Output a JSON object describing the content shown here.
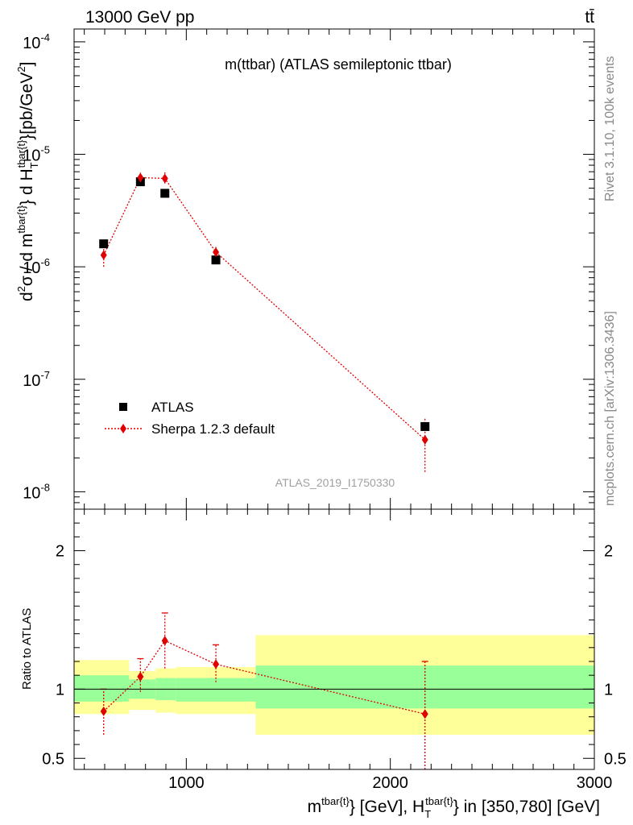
{
  "header": {
    "energy_label": "13000 GeV pp",
    "process_label": "tt̄"
  },
  "side_labels": {
    "rivet": "Rivet 3.1.10,  100k events",
    "mcplots": "mcplots.cern.ch [arXiv:1306.3436]"
  },
  "chart_data": [
    {
      "type": "scatter",
      "title": "m(ttbar) (ATLAS semileptonic ttbar)",
      "watermark": "ATLAS_2019_I1750330",
      "ylabel": "d²σ / d m^tbar{t} d H_T^tbar{t} [pb/GeV²]",
      "yscale": "log",
      "xlim": [
        450,
        3000
      ],
      "ylim": [
        7e-09,
        0.00013
      ],
      "y_tick_labels": [
        "10^-8",
        "10^-7",
        "10^-6",
        "10^-5",
        "10^-4"
      ],
      "legend": {
        "placement": "bottom-left"
      },
      "series": [
        {
          "name": "ATLAS",
          "x": [
            595,
            775,
            895,
            1145,
            2170
          ],
          "y": [
            1.6e-06,
            5.7e-06,
            4.5e-06,
            1.15e-06,
            3.8e-08
          ]
        },
        {
          "name": "Sherpa 1.2.3 default",
          "x": [
            595,
            775,
            895,
            1145,
            2170
          ],
          "y": [
            1.27e-06,
            6.2e-06,
            6.1e-06,
            1.35e-06,
            2.9e-08
          ],
          "err_low": [
            1e-06,
            5.6e-06,
            5.5e-06,
            1.2e-06,
            1.5e-08
          ],
          "err_high": [
            1.55e-06,
            6.9e-06,
            6.9e-06,
            1.5e-06,
            4.5e-08
          ]
        }
      ]
    },
    {
      "type": "scatter",
      "ylabel": "Ratio to ATLAS",
      "xlabel": "m^tbar{t} [GeV], H_T^tbar{t} in [350,780] [GeV]",
      "xlim": [
        450,
        3000
      ],
      "ylim": [
        0.42,
        2.3
      ],
      "x_tick_labels": [
        "1000",
        "2000",
        "3000"
      ],
      "y_tick_labels": [
        "0.5",
        "1",
        "2"
      ],
      "bins": [
        {
          "x_range": [
            450,
            720
          ],
          "green": [
            0.91,
            1.1
          ],
          "yellow": [
            0.82,
            1.21
          ]
        },
        {
          "x_range": [
            720,
            850
          ],
          "green": [
            0.93,
            1.07
          ],
          "yellow": [
            0.85,
            1.13
          ]
        },
        {
          "x_range": [
            850,
            950
          ],
          "green": [
            0.92,
            1.08
          ],
          "yellow": [
            0.83,
            1.15
          ]
        },
        {
          "x_range": [
            950,
            1340
          ],
          "green": [
            0.91,
            1.08
          ],
          "yellow": [
            0.82,
            1.16
          ]
        },
        {
          "x_range": [
            1340,
            3000
          ],
          "green": [
            0.86,
            1.17
          ],
          "yellow": [
            0.67,
            1.39
          ]
        }
      ],
      "series": [
        {
          "name": "Sherpa 1.2.3 default",
          "x": [
            595,
            775,
            895,
            1145,
            2170
          ],
          "y": [
            0.84,
            1.09,
            1.35,
            1.18,
            0.82
          ],
          "err_low": [
            0.67,
            0.98,
            1.15,
            1.05,
            0.4
          ],
          "err_high": [
            1.0,
            1.22,
            1.55,
            1.32,
            1.2
          ]
        }
      ]
    }
  ]
}
